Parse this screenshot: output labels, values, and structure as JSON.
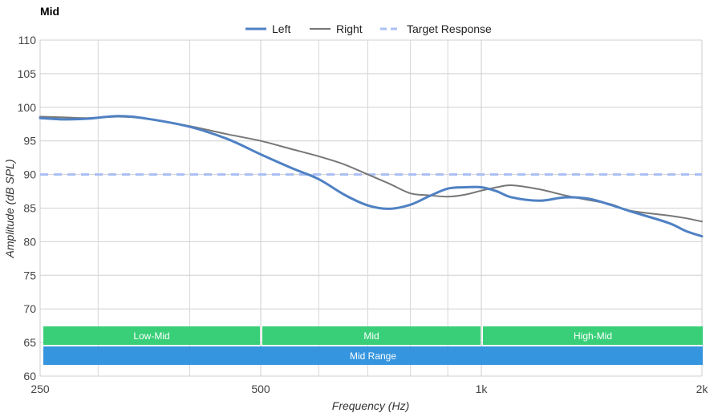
{
  "chart_data": {
    "type": "line",
    "title": "Mid",
    "xlabel": "Frequency (Hz)",
    "ylabel": "Amplitude (dB SPL)",
    "x_scale": "log",
    "xlim": [
      250,
      2000
    ],
    "ylim": [
      60,
      110
    ],
    "x_ticks": [
      {
        "value": 250,
        "label": "250"
      },
      {
        "value": 500,
        "label": "500"
      },
      {
        "value": 1000,
        "label": "1k"
      },
      {
        "value": 2000,
        "label": "2k"
      }
    ],
    "x_minor_gridlines": [
      300,
      400,
      600,
      700,
      800,
      900
    ],
    "y_ticks": [
      60,
      65,
      70,
      75,
      80,
      85,
      90,
      95,
      100,
      105,
      110
    ],
    "grid": true,
    "legend_position": "top-center",
    "series": [
      {
        "name": "Left",
        "color": "#4f81c3",
        "style": "solid-thick",
        "points": [
          [
            250,
            98.4
          ],
          [
            270,
            98.2
          ],
          [
            290,
            98.3
          ],
          [
            320,
            98.7
          ],
          [
            350,
            98.3
          ],
          [
            400,
            97.1
          ],
          [
            450,
            95.3
          ],
          [
            500,
            93.0
          ],
          [
            550,
            91.0
          ],
          [
            600,
            89.3
          ],
          [
            650,
            87.0
          ],
          [
            700,
            85.4
          ],
          [
            750,
            84.9
          ],
          [
            800,
            85.5
          ],
          [
            850,
            86.8
          ],
          [
            900,
            87.9
          ],
          [
            950,
            88.1
          ],
          [
            1000,
            88.1
          ],
          [
            1050,
            87.5
          ],
          [
            1100,
            86.6
          ],
          [
            1200,
            86.1
          ],
          [
            1300,
            86.6
          ],
          [
            1400,
            86.4
          ],
          [
            1500,
            85.5
          ],
          [
            1600,
            84.5
          ],
          [
            1800,
            82.8
          ],
          [
            1900,
            81.6
          ],
          [
            2000,
            80.8
          ]
        ]
      },
      {
        "name": "Right",
        "color": "#777777",
        "style": "solid-thin",
        "points": [
          [
            250,
            98.6
          ],
          [
            270,
            98.5
          ],
          [
            290,
            98.4
          ],
          [
            320,
            98.6
          ],
          [
            350,
            98.3
          ],
          [
            400,
            97.2
          ],
          [
            450,
            96.0
          ],
          [
            500,
            95.0
          ],
          [
            550,
            93.8
          ],
          [
            600,
            92.7
          ],
          [
            650,
            91.5
          ],
          [
            700,
            90.0
          ],
          [
            750,
            88.6
          ],
          [
            800,
            87.2
          ],
          [
            850,
            86.9
          ],
          [
            900,
            86.7
          ],
          [
            950,
            87.0
          ],
          [
            1000,
            87.6
          ],
          [
            1050,
            88.1
          ],
          [
            1100,
            88.4
          ],
          [
            1200,
            87.8
          ],
          [
            1300,
            86.9
          ],
          [
            1400,
            86.2
          ],
          [
            1500,
            85.6
          ],
          [
            1600,
            84.6
          ],
          [
            1800,
            83.9
          ],
          [
            1900,
            83.5
          ],
          [
            2000,
            83.0
          ]
        ]
      },
      {
        "name": "Target Response",
        "color": "#aabff5",
        "style": "dashed",
        "points": [
          [
            250,
            90
          ],
          [
            2000,
            90
          ]
        ]
      }
    ],
    "bands": [
      {
        "label": "Low-Mid",
        "from": 250,
        "to": 500,
        "row": 1,
        "color": "#2ecc71"
      },
      {
        "label": "Mid",
        "from": 500,
        "to": 1000,
        "row": 1,
        "color": "#2ecc71"
      },
      {
        "label": "High-Mid",
        "from": 1000,
        "to": 2000,
        "row": 1,
        "color": "#2ecc71"
      },
      {
        "label": "Mid Range",
        "from": 250,
        "to": 2000,
        "row": 2,
        "color": "#2a8fdd"
      }
    ]
  }
}
